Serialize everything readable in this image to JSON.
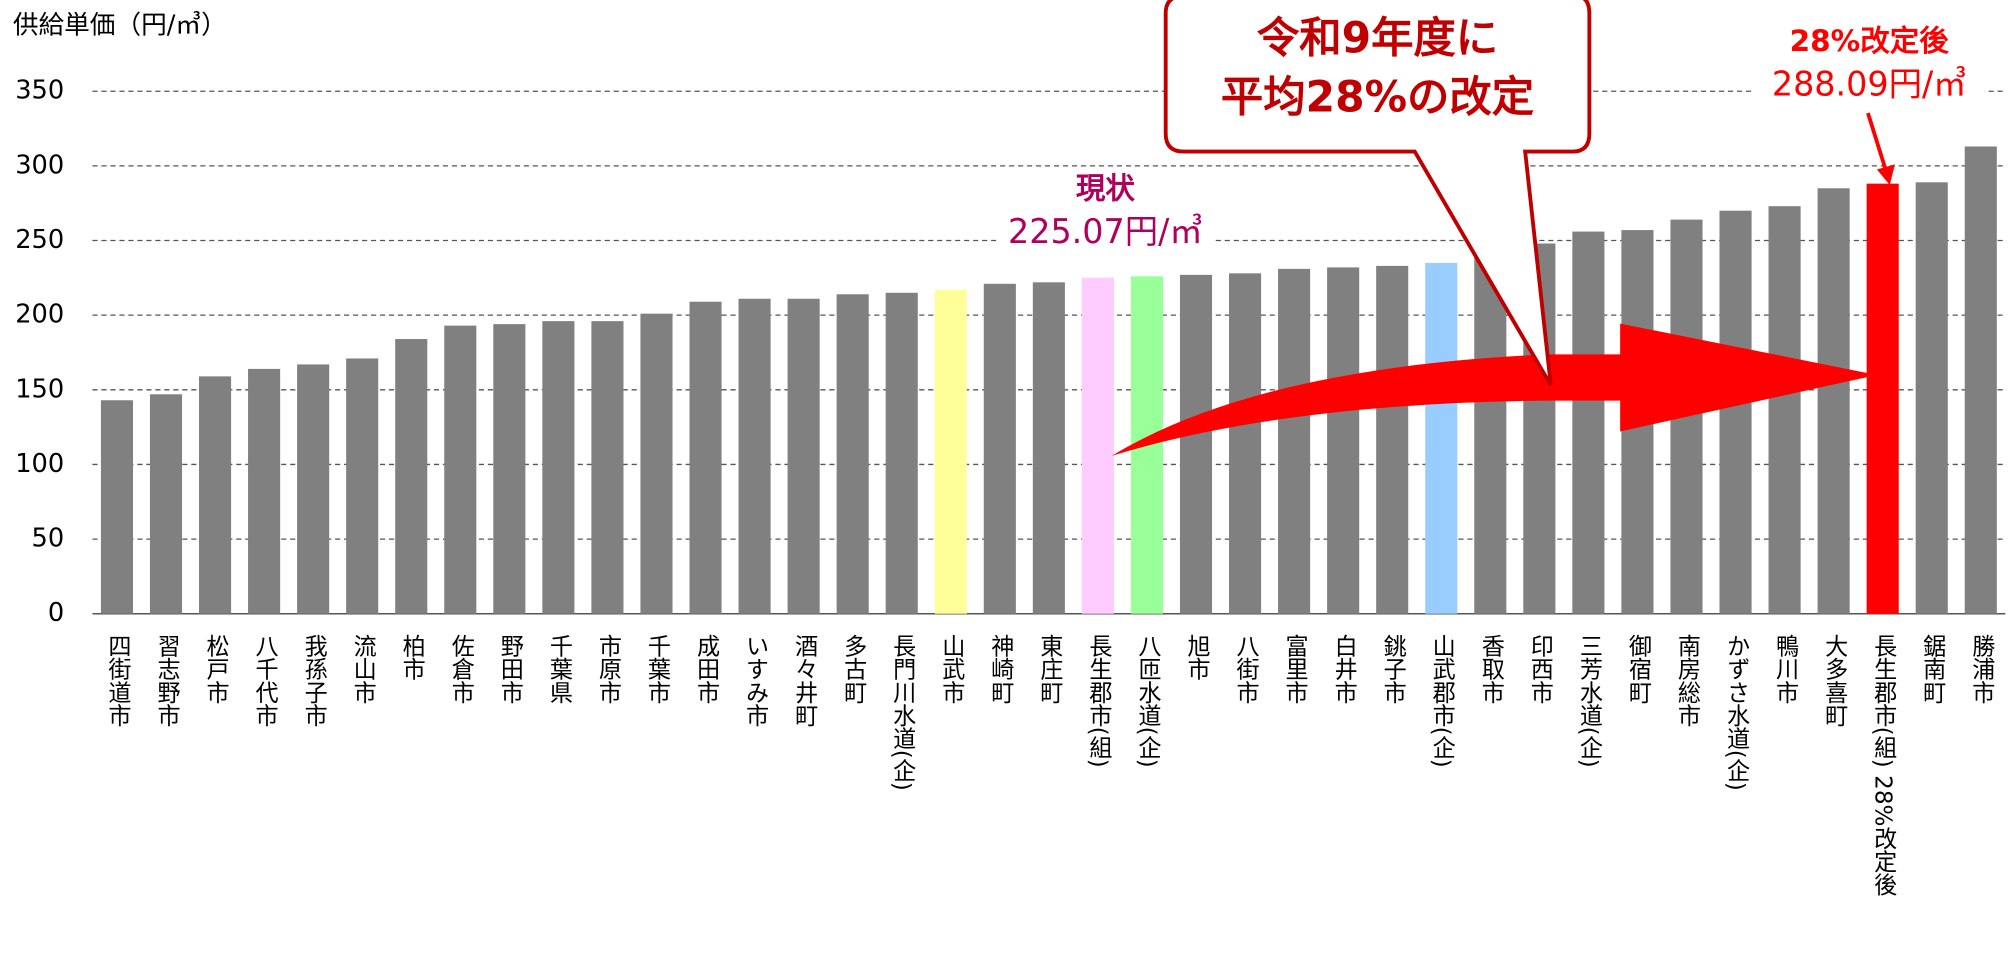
{
  "chart_data": {
    "type": "bar",
    "y_label": "供給単価（円/㎥）",
    "categories": [
      "四街道市",
      "習志野市",
      "松戸市",
      "八千代市",
      "我孫子市",
      "流山市",
      "柏市",
      "佐倉市",
      "野田市",
      "千葉県",
      "市原市",
      "千葉市",
      "成田市",
      "いすみ市",
      "酒々井町",
      "多古町",
      "長門川水道(企)",
      "山武市",
      "神崎町",
      "東庄町",
      "長生郡市(組)",
      "八匝水道(企)",
      "旭市",
      "八街市",
      "富里市",
      "白井市",
      "銚子市",
      "山武郡市(企)",
      "香取市",
      "印西市",
      "三芳水道(企)",
      "御宿町",
      "南房総市",
      "かずさ水道(企)",
      "鴨川市",
      "大多喜町",
      "長生郡市(組) 28%改定後",
      "鋸南町",
      "勝浦市"
    ],
    "values": [
      143,
      147,
      159,
      164,
      167,
      171,
      184,
      193,
      194,
      196,
      196,
      201,
      209,
      211,
      211,
      214,
      215,
      217,
      221,
      222,
      225.07,
      226,
      227,
      228,
      231,
      232,
      233,
      235,
      240,
      248,
      256,
      257,
      264,
      270,
      273,
      285,
      288.09,
      289,
      313
    ],
    "colors": [
      "#808080",
      "#808080",
      "#808080",
      "#808080",
      "#808080",
      "#808080",
      "#808080",
      "#808080",
      "#808080",
      "#808080",
      "#808080",
      "#808080",
      "#808080",
      "#808080",
      "#808080",
      "#808080",
      "#808080",
      "#ffff99",
      "#808080",
      "#808080",
      "#ffccff",
      "#99ff99",
      "#808080",
      "#808080",
      "#808080",
      "#808080",
      "#808080",
      "#99ccff",
      "#808080",
      "#808080",
      "#808080",
      "#808080",
      "#808080",
      "#808080",
      "#808080",
      "#808080",
      "#ff0000",
      "#808080",
      "#808080"
    ],
    "ylim": [
      0,
      350
    ],
    "yticks": [
      0,
      50,
      100,
      150,
      200,
      250,
      300,
      350
    ],
    "grid": true,
    "annotations": {
      "current_title": "現状",
      "current_value": "225.07円/㎥",
      "revised_title": "28%改定後",
      "revised_value": "288.09円/㎥",
      "callout_line1": "令和9年度に",
      "callout_line2": "平均28%の改定"
    }
  }
}
